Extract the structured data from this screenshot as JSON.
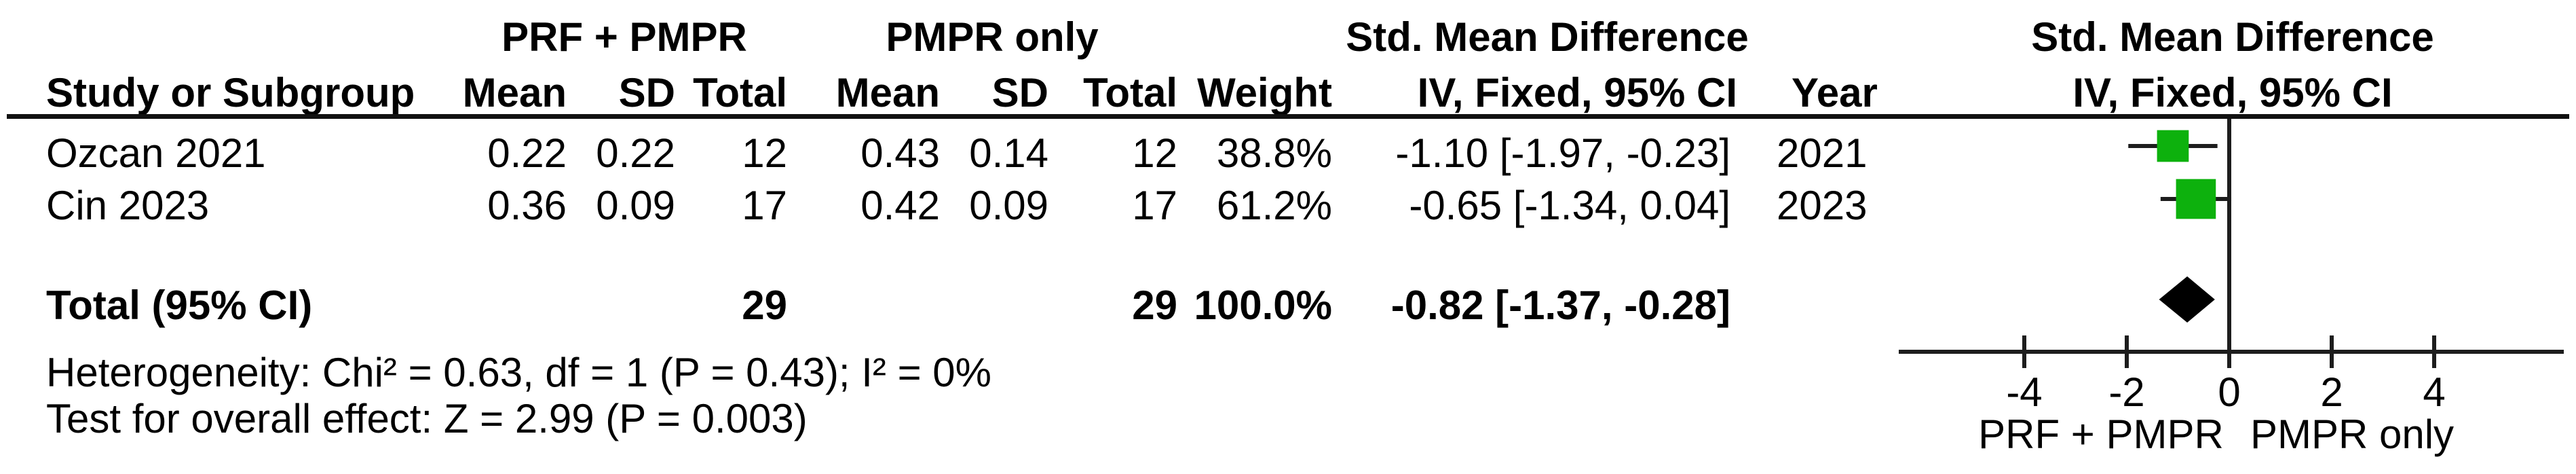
{
  "table": {
    "group1_label": "PRF + PMPR",
    "group2_label": "PMPR only",
    "smd_header_left": "Std. Mean Difference",
    "smd_header_right": "Std. Mean Difference",
    "method_header_left": "IV, Fixed, 95% CI",
    "method_header_right": "IV, Fixed, 95% CI",
    "col_study": "Study or Subgroup",
    "col_mean1": "Mean",
    "col_sd1": "SD",
    "col_total1": "Total",
    "col_mean2": "Mean",
    "col_sd2": "SD",
    "col_total2": "Total",
    "col_weight": "Weight",
    "col_year": "Year",
    "rows": [
      {
        "study": "Ozcan 2021",
        "mean1": "0.22",
        "sd1": "0.22",
        "total1": "12",
        "mean2": "0.43",
        "sd2": "0.14",
        "total2": "12",
        "weight": "38.8%",
        "ci": "-1.10 [-1.97, -0.23]",
        "year": "2021"
      },
      {
        "study": "Cin 2023",
        "mean1": "0.36",
        "sd1": "0.09",
        "total1": "17",
        "mean2": "0.42",
        "sd2": "0.09",
        "total2": "17",
        "weight": "61.2%",
        "ci": "-0.65 [-1.34, 0.04]",
        "year": "2023"
      }
    ],
    "total_row": {
      "label": "Total (95% CI)",
      "total1": "29",
      "total2": "29",
      "weight": "100.0%",
      "ci": "-0.82 [-1.37, -0.28]"
    },
    "footer": {
      "heterogeneity": "Heterogeneity: Chi² = 0.63, df = 1 (P = 0.43); I² = 0%",
      "overall_effect": "Test for overall effect: Z = 2.99 (P = 0.003)"
    }
  },
  "chart_data": {
    "type": "forest",
    "effect_measure": "Std. Mean Difference (IV, Fixed, 95% CI)",
    "x_axis": {
      "ticks": [
        -4,
        -2,
        0,
        2,
        4
      ],
      "min": -6.4,
      "max": 6.5,
      "left_label": "PRF + PMPR",
      "right_label": "PMPR only"
    },
    "studies": [
      {
        "name": "Ozcan 2021",
        "year": "2021",
        "smd": -1.1,
        "ci_low": -1.97,
        "ci_high": -0.23,
        "weight_pct": 38.8
      },
      {
        "name": "Cin 2023",
        "year": "2023",
        "smd": -0.65,
        "ci_low": -1.34,
        "ci_high": 0.04,
        "weight_pct": 61.2
      }
    ],
    "total": {
      "label": "Total (95% CI)",
      "smd": -0.82,
      "ci_low": -1.37,
      "ci_high": -0.28,
      "weight_pct": 100.0
    },
    "marker_color": "#0db10d",
    "line_color": "#1d1d1d",
    "diamond_color": "#000000"
  }
}
